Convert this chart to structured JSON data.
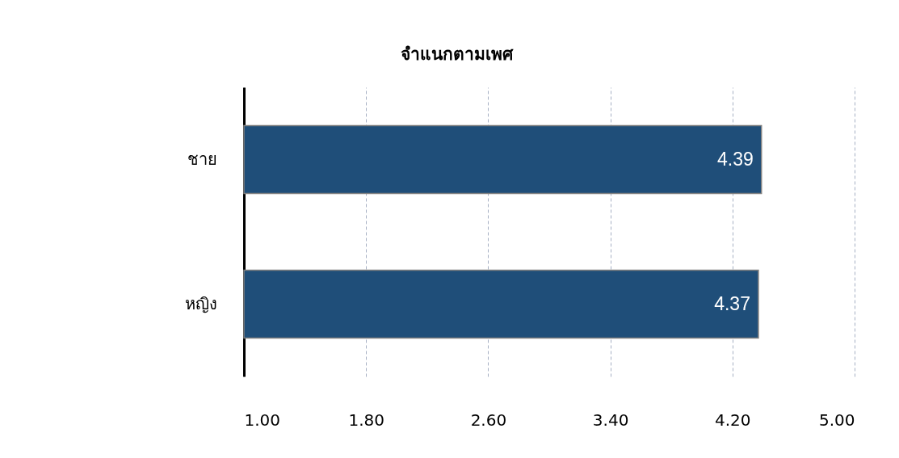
{
  "chart_data": {
    "type": "bar",
    "orientation": "horizontal",
    "title": "จำแนกตามเพศ",
    "categories": [
      "ชาย",
      "หญิง"
    ],
    "values": [
      4.39,
      4.37
    ],
    "color": "#1f4e79",
    "xlim": [
      1,
      5
    ],
    "xticks": [
      {
        "value": 1,
        "label": "1.00"
      },
      {
        "value": 1.8,
        "label": "1.80"
      },
      {
        "value": 2.6,
        "label": "2.60"
      },
      {
        "value": 3.4,
        "label": "3.40"
      },
      {
        "value": 4.2,
        "label": "4.20"
      },
      {
        "value": 5,
        "label": "5.00"
      }
    ],
    "grid": "x",
    "data_labels": true
  }
}
